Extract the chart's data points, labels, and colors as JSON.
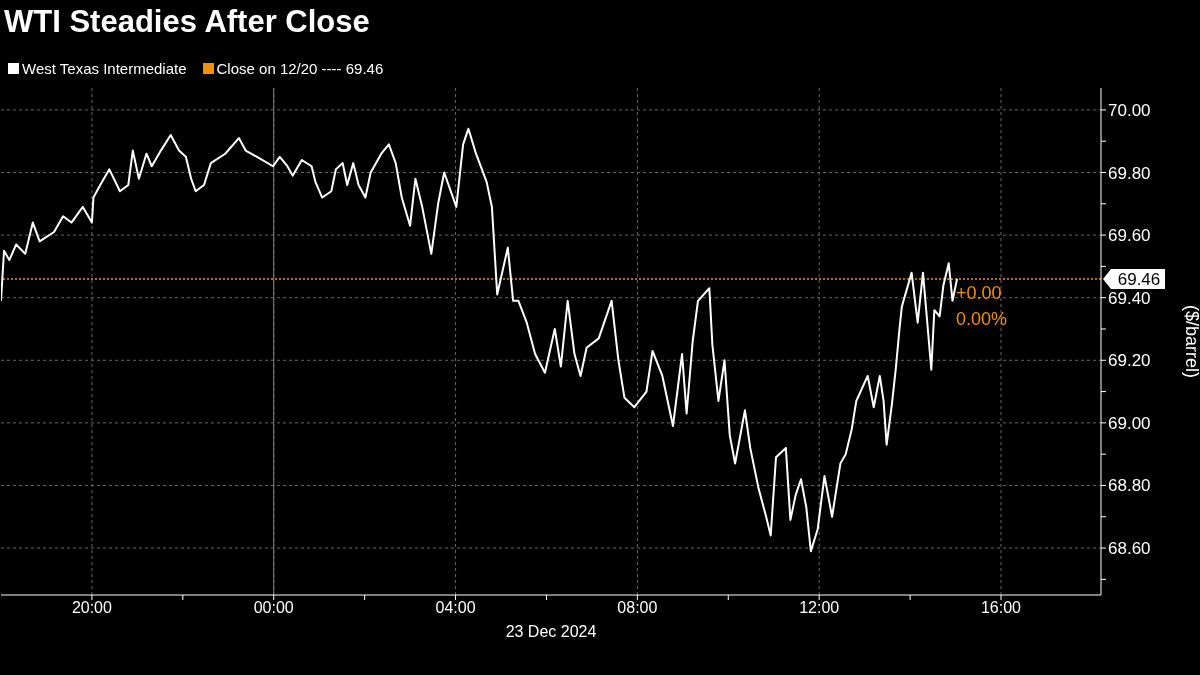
{
  "chart_data": {
    "type": "line",
    "title": "WTI Steadies After Close",
    "xlabel": "23 Dec 2024",
    "ylabel": "($/barrel)",
    "x": [
      "2024-12-22T18:00",
      "2024-12-22T18:04",
      "2024-12-22T18:11",
      "2024-12-22T18:20",
      "2024-12-22T18:32",
      "2024-12-22T18:42",
      "2024-12-22T18:51",
      "2024-12-22T19:10",
      "2024-12-22T19:22",
      "2024-12-22T19:33",
      "2024-12-22T19:48",
      "2024-12-22T20:00",
      "2024-12-22T20:02",
      "2024-12-22T20:11",
      "2024-12-22T20:23",
      "2024-12-22T20:37",
      "2024-12-22T20:48",
      "2024-12-22T20:54",
      "2024-12-22T21:02",
      "2024-12-22T21:12",
      "2024-12-22T21:19",
      "2024-12-22T21:31",
      "2024-12-22T21:44",
      "2024-12-22T21:55",
      "2024-12-22T22:04",
      "2024-12-22T22:11",
      "2024-12-22T22:17",
      "2024-12-22T22:28",
      "2024-12-22T22:37",
      "2024-12-22T22:56",
      "2024-12-22T23:14",
      "2024-12-22T23:23",
      "2024-12-22T23:38",
      "2024-12-22T23:59",
      "2024-12-23T00:08",
      "2024-12-23T00:18",
      "2024-12-23T00:25",
      "2024-12-23T00:37",
      "2024-12-23T00:50",
      "2024-12-23T00:55",
      "2024-12-23T01:04",
      "2024-12-23T01:16",
      "2024-12-23T01:22",
      "2024-12-23T01:31",
      "2024-12-23T01:37",
      "2024-12-23T01:45",
      "2024-12-23T01:52",
      "2024-12-23T02:01",
      "2024-12-23T02:08",
      "2024-12-23T02:22",
      "2024-12-23T02:32",
      "2024-12-23T02:41",
      "2024-12-23T02:49",
      "2024-12-23T03:00",
      "2024-12-23T03:07",
      "2024-12-23T03:16",
      "2024-12-23T03:28",
      "2024-12-23T03:37",
      "2024-12-23T03:45",
      "2024-12-23T04:01",
      "2024-12-23T04:10",
      "2024-12-23T04:17",
      "2024-12-23T04:27",
      "2024-12-23T04:41",
      "2024-12-23T04:48",
      "2024-12-23T04:50",
      "2024-12-23T04:55",
      "2024-12-23T05:09",
      "2024-12-23T05:16",
      "2024-12-23T05:23",
      "2024-12-23T05:34",
      "2024-12-23T05:45",
      "2024-12-23T05:58",
      "2024-12-23T06:11",
      "2024-12-23T06:19",
      "2024-12-23T06:28",
      "2024-12-23T06:37",
      "2024-12-23T06:45",
      "2024-12-23T06:53",
      "2024-12-23T07:09",
      "2024-12-23T07:26",
      "2024-12-23T07:35",
      "2024-12-23T07:43",
      "2024-12-23T07:56",
      "2024-12-23T08:12",
      "2024-12-23T08:20",
      "2024-12-23T08:33",
      "2024-12-23T08:47",
      "2024-12-23T08:59",
      "2024-12-23T09:05",
      "2024-12-23T09:13",
      "2024-12-23T09:20",
      "2024-12-23T09:35",
      "2024-12-23T09:39",
      "2024-12-23T09:47",
      "2024-12-23T09:55",
      "2024-12-23T10:02",
      "2024-12-23T10:09",
      "2024-12-23T10:22",
      "2024-12-23T10:29",
      "2024-12-23T10:40",
      "2024-12-23T10:50",
      "2024-12-23T10:56",
      "2024-12-23T11:03",
      "2024-12-23T11:16",
      "2024-12-23T11:22",
      "2024-12-23T11:29",
      "2024-12-23T11:36",
      "2024-12-23T11:43",
      "2024-12-23T11:49",
      "2024-12-23T11:58",
      "2024-12-23T12:07",
      "2024-12-23T12:17",
      "2024-12-23T12:28",
      "2024-12-23T12:35",
      "2024-12-23T12:43",
      "2024-12-23T12:49",
      "2024-12-23T13:04",
      "2024-12-23T13:12",
      "2024-12-23T13:20",
      "2024-12-23T13:25",
      "2024-12-23T13:29",
      "2024-12-23T13:36",
      "2024-12-23T13:41",
      "2024-12-23T13:46",
      "2024-12-23T13:49",
      "2024-12-23T14:02",
      "2024-12-23T14:10",
      "2024-12-23T14:17",
      "2024-12-23T14:22",
      "2024-12-23T14:28",
      "2024-12-23T14:32",
      "2024-12-23T14:39",
      "2024-12-23T14:44",
      "2024-12-23T14:51",
      "2024-12-23T14:56",
      "2024-12-23T15:02"
    ],
    "series": [
      {
        "name": "West Texas Intermediate",
        "color": "#ffffff",
        "values": [
          69.39,
          69.55,
          69.52,
          69.57,
          69.54,
          69.64,
          69.58,
          69.61,
          69.66,
          69.64,
          69.69,
          69.64,
          69.72,
          69.76,
          69.81,
          69.74,
          69.76,
          69.87,
          69.78,
          69.86,
          69.82,
          69.87,
          69.92,
          69.87,
          69.85,
          69.78,
          69.74,
          69.76,
          69.83,
          69.86,
          69.91,
          69.87,
          69.85,
          69.82,
          69.85,
          69.82,
          69.79,
          69.84,
          69.82,
          69.77,
          69.72,
          69.74,
          69.81,
          69.83,
          69.76,
          69.83,
          69.76,
          69.72,
          69.8,
          69.86,
          69.89,
          69.83,
          69.72,
          69.63,
          69.78,
          69.69,
          69.54,
          69.7,
          69.8,
          69.69,
          69.89,
          69.94,
          69.86,
          69.77,
          69.69,
          69.61,
          69.41,
          69.56,
          69.39,
          69.39,
          69.32,
          69.22,
          69.16,
          69.3,
          69.18,
          69.39,
          69.22,
          69.15,
          69.24,
          69.27,
          69.39,
          69.2,
          69.08,
          69.05,
          69.1,
          69.23,
          69.15,
          68.99,
          69.22,
          69.03,
          69.26,
          69.39,
          69.43,
          69.25,
          69.07,
          69.2,
          68.96,
          68.87,
          69.04,
          68.92,
          68.79,
          68.7,
          68.64,
          68.89,
          68.92,
          68.69,
          68.77,
          68.82,
          68.73,
          68.59,
          68.66,
          68.83,
          68.7,
          68.87,
          68.9,
          68.98,
          69.07,
          69.15,
          69.05,
          69.15,
          69.07,
          68.93,
          69.06,
          69.17,
          69.3,
          69.37,
          69.48,
          69.32,
          69.48,
          69.34,
          69.17,
          69.36,
          69.34,
          69.44,
          69.51,
          69.39,
          69.46
        ]
      }
    ],
    "xlim": [
      "2024-12-22T18:00",
      "2024-12-23T18:12"
    ],
    "xticks": [
      {
        "value": "2024-12-22T20:00",
        "label": "20:00"
      },
      {
        "value": "2024-12-22T22:00",
        "label": null
      },
      {
        "value": "2024-12-23T00:00",
        "label": "00:00"
      },
      {
        "value": "2024-12-23T02:00",
        "label": null
      },
      {
        "value": "2024-12-23T04:00",
        "label": "04:00"
      },
      {
        "value": "2024-12-23T06:00",
        "label": null
      },
      {
        "value": "2024-12-23T08:00",
        "label": "08:00"
      },
      {
        "value": "2024-12-23T10:00",
        "label": null
      },
      {
        "value": "2024-12-23T12:00",
        "label": "12:00"
      },
      {
        "value": "2024-12-23T14:00",
        "label": null
      },
      {
        "value": "2024-12-23T16:00",
        "label": "16:00"
      }
    ],
    "ylim": [
      68.45,
      70.07
    ],
    "yticks": [
      {
        "value": 68.5,
        "label": null
      },
      {
        "value": 68.6,
        "label": "68.60"
      },
      {
        "value": 68.7,
        "label": null
      },
      {
        "value": 68.8,
        "label": "68.80"
      },
      {
        "value": 68.9,
        "label": null
      },
      {
        "value": 69.0,
        "label": "69.00"
      },
      {
        "value": 69.1,
        "label": null
      },
      {
        "value": 69.2,
        "label": "69.20"
      },
      {
        "value": 69.3,
        "label": null
      },
      {
        "value": 69.4,
        "label": "69.40"
      },
      {
        "value": 69.5,
        "label": null
      },
      {
        "value": 69.6,
        "label": "69.60"
      },
      {
        "value": 69.7,
        "label": null
      },
      {
        "value": 69.8,
        "label": "69.80"
      },
      {
        "value": 69.9,
        "label": null
      },
      {
        "value": 70.0,
        "label": "70.00"
      }
    ],
    "grid": true,
    "legend": "top left",
    "marker": "none",
    "line_style": "solid",
    "ref_lines": [
      {
        "axis": "y",
        "value": 69.46,
        "label": "Close on 12/20 ---- 69.46",
        "color": "#f39200",
        "line_style": "dotted"
      },
      {
        "axis": "x",
        "value": "2024-12-23T00:00",
        "color": "#808080",
        "line_style": "solid"
      }
    ],
    "annotations": [
      "69.46",
      "+0.00",
      "0.00%"
    ]
  }
}
